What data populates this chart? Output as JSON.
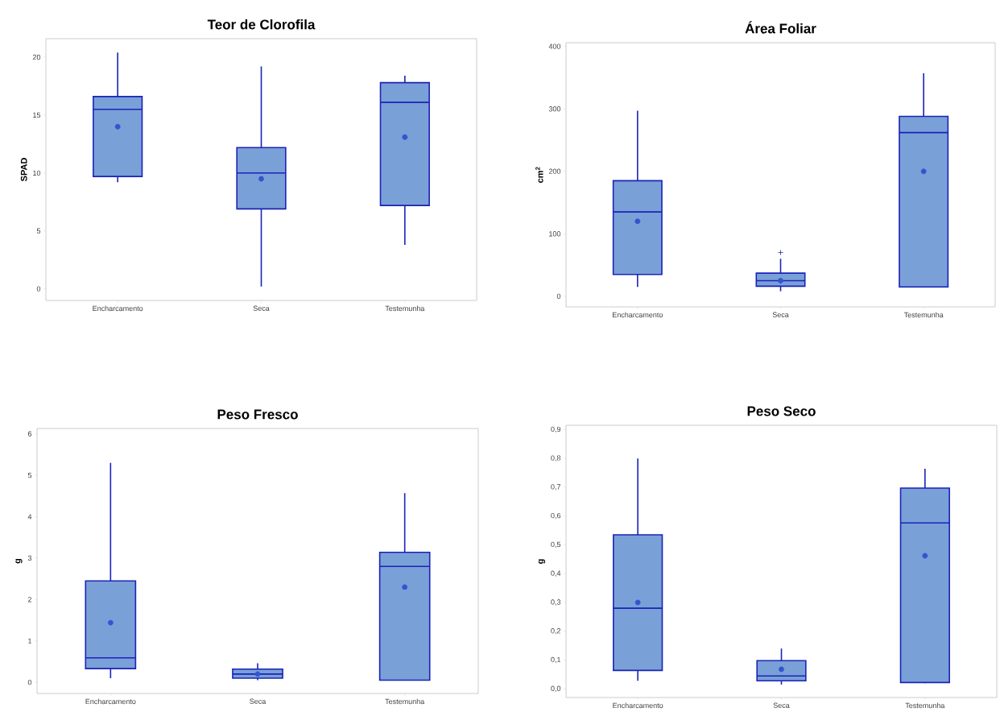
{
  "chart_data": [
    {
      "type": "box",
      "title": "Teor de Clorofila",
      "ylabel": "SPAD",
      "categories": [
        "Encharcamento",
        "Seca",
        "Testemunha"
      ],
      "ylim": [
        -1,
        21.6
      ],
      "yticks": [
        0,
        5,
        10,
        15,
        20
      ],
      "grid": false,
      "series": [
        {
          "color": "#7aa0d8",
          "boxes": [
            {
              "low": 9.2,
              "q1": 9.7,
              "median": 15.5,
              "q3": 16.6,
              "high": 20.4,
              "mean": 14.0
            },
            {
              "low": 0.2,
              "q1": 6.9,
              "median": 10.0,
              "q3": 12.2,
              "high": 19.2,
              "mean": 9.5
            },
            {
              "low": 3.8,
              "q1": 7.2,
              "median": 16.1,
              "q3": 17.8,
              "high": 18.4,
              "mean": 13.1
            }
          ]
        }
      ]
    },
    {
      "type": "box",
      "title": "Área Foliar",
      "ylabel": "cm$^{2}$",
      "categories": [
        "Encharcamento",
        "Seca",
        "Testemunha"
      ],
      "ylim": [
        -17,
        406
      ],
      "yticks": [
        0,
        100,
        200,
        300,
        400
      ],
      "grid": false,
      "series": [
        {
          "color": "#7aa0d8",
          "boxes": [
            {
              "low": 15,
              "q1": 35,
              "median": 135,
              "q3": 185,
              "high": 297,
              "mean": 120
            },
            {
              "low": 8,
              "q1": 16,
              "median": 25,
              "q3": 37,
              "high": 60,
              "mean": 25,
              "outliers": [
                70
              ]
            },
            {
              "low": 15,
              "q1": 15,
              "median": 262,
              "q3": 288,
              "high": 357,
              "mean": 200
            }
          ]
        }
      ]
    },
    {
      "type": "box",
      "title": "Peso Fresco",
      "ylabel": "g",
      "categories": [
        "Encharcamento",
        "Seca",
        "Testemunha"
      ],
      "ylim": [
        -0.27,
        6.13
      ],
      "yticks": [
        0,
        1,
        2,
        3,
        4,
        5,
        6
      ],
      "grid": false,
      "series": [
        {
          "color": "#7aa0d8",
          "boxes": [
            {
              "low": 0.1,
              "q1": 0.33,
              "median": 0.59,
              "q3": 2.45,
              "high": 5.3,
              "mean": 1.44
            },
            {
              "low": 0.05,
              "q1": 0.1,
              "median": 0.2,
              "q3": 0.32,
              "high": 0.46,
              "mean": 0.2
            },
            {
              "low": 0.05,
              "q1": 0.05,
              "median": 2.8,
              "q3": 3.14,
              "high": 4.57,
              "mean": 2.3
            }
          ]
        }
      ]
    },
    {
      "type": "box",
      "title": "Peso Seco",
      "ylabel": "g",
      "categories": [
        "Encharcamento",
        "Seca",
        "Testemunha"
      ],
      "ylim": [
        -0.03,
        0.915
      ],
      "grid": false,
      "yticks": [
        {
          "value": 0,
          "label": "0,0"
        },
        {
          "value": 0.1,
          "label": "0,1"
        },
        {
          "value": 0.2,
          "label": "0,2"
        },
        {
          "value": 0.3,
          "label": "0,3"
        },
        {
          "value": 0.4,
          "label": "0,4"
        },
        {
          "value": 0.5,
          "label": "0,5"
        },
        {
          "value": 0.6,
          "label": "0,6"
        },
        {
          "value": 0.7,
          "label": "0,7"
        },
        {
          "value": 0.8,
          "label": "0,8"
        },
        {
          "value": 0.9,
          "label": "0,9"
        }
      ],
      "series": [
        {
          "color": "#7aa0d8",
          "boxes": [
            {
              "low": 0.028,
              "q1": 0.064,
              "median": 0.28,
              "q3": 0.535,
              "high": 0.8,
              "mean": 0.3
            },
            {
              "low": 0.015,
              "q1": 0.028,
              "median": 0.045,
              "q3": 0.098,
              "high": 0.14,
              "mean": 0.068
            },
            {
              "low": 0.02,
              "q1": 0.022,
              "median": 0.576,
              "q3": 0.697,
              "high": 0.764,
              "mean": 0.462
            }
          ]
        }
      ]
    }
  ]
}
